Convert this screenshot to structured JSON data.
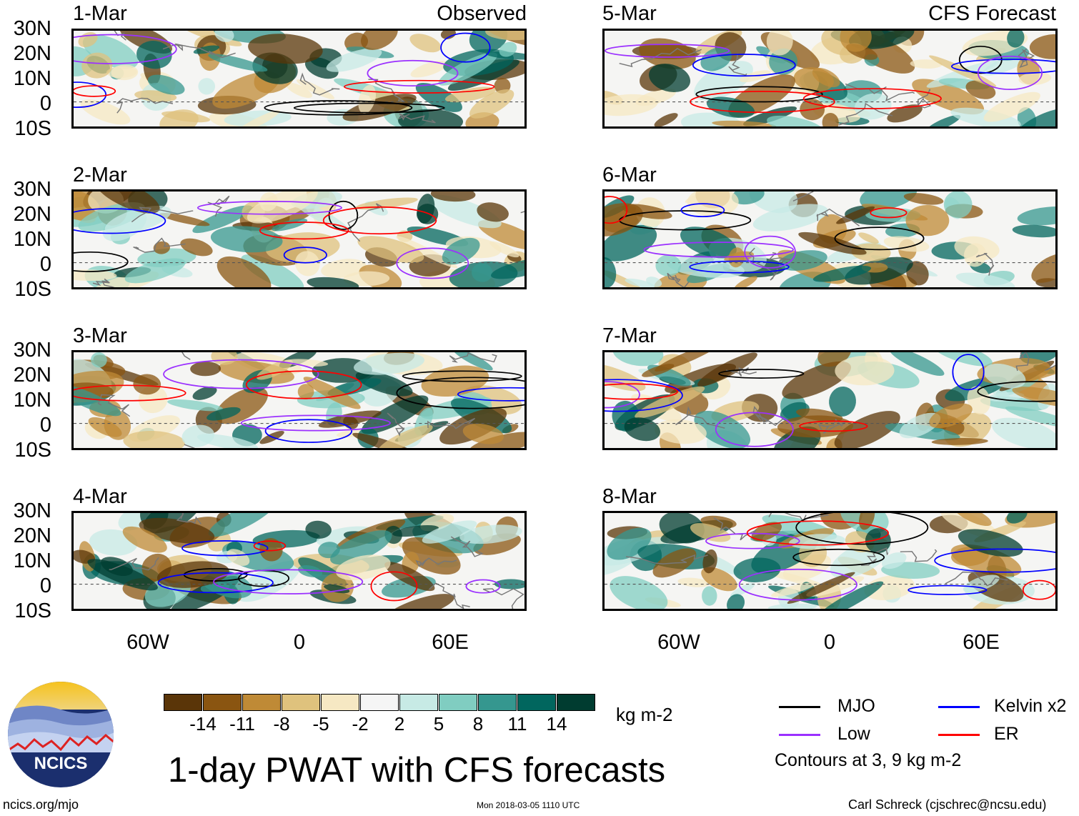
{
  "header": {
    "left_title": "Observed",
    "right_title": "CFS Forecast"
  },
  "panels_left": [
    {
      "date": "1-Mar"
    },
    {
      "date": "2-Mar"
    },
    {
      "date": "3-Mar"
    },
    {
      "date": "4-Mar"
    }
  ],
  "panels_right": [
    {
      "date": "5-Mar"
    },
    {
      "date": "6-Mar"
    },
    {
      "date": "7-Mar"
    },
    {
      "date": "8-Mar"
    }
  ],
  "lat_labels": [
    "30N",
    "20N",
    "10N",
    "0",
    "10S"
  ],
  "lon_labels": [
    "60W",
    "0",
    "60E"
  ],
  "colorbar": {
    "colors": [
      "#5a3508",
      "#8a5511",
      "#bf8a36",
      "#dfc27d",
      "#f6e8c3",
      "#f5f5f5",
      "#c7eae5",
      "#80cdc1",
      "#35978f",
      "#01665e",
      "#003c30"
    ],
    "labels": [
      "-14",
      "-11",
      "-8",
      "-5",
      "-2",
      "2",
      "5",
      "8",
      "11",
      "14"
    ],
    "units": "kg m-2"
  },
  "legend": {
    "items": [
      {
        "label": "MJO",
        "color": "#000000"
      },
      {
        "label": "Kelvin x2",
        "color": "#0000ff"
      },
      {
        "label": "Low",
        "color": "#9b30ff"
      },
      {
        "label": "ER",
        "color": "#ff0000"
      }
    ],
    "note": "Contours at 3, 9 kg m-2"
  },
  "title": "1-day PWAT with CFS forecasts",
  "logo_text": "NCICS",
  "footer": {
    "url": "ncics.org/mjo",
    "timestamp": "Mon 2018-03-05 1110 UTC",
    "credit": "Carl Schreck (cjschrec@ncsu.edu)"
  }
}
